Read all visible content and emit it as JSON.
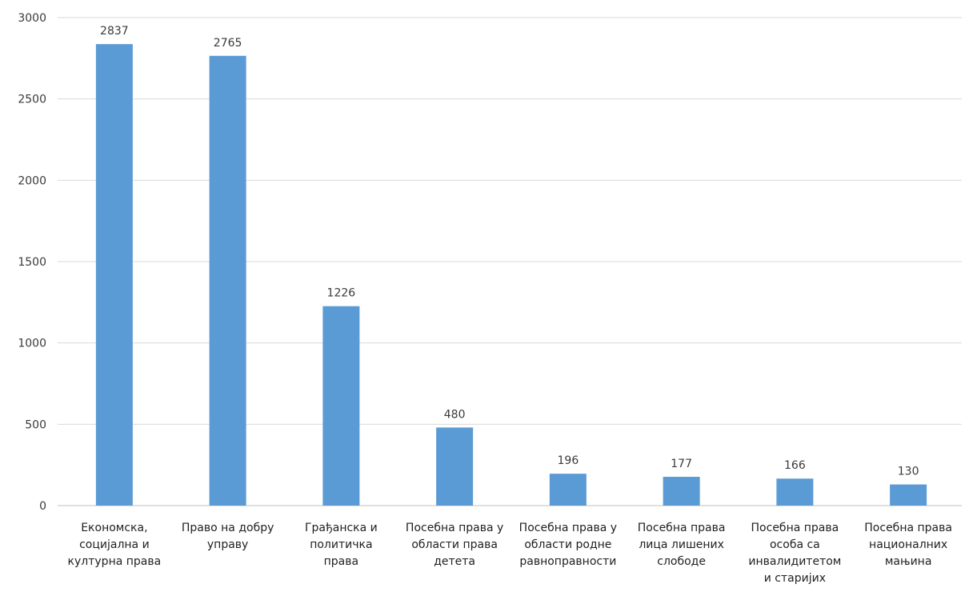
{
  "chart_data": {
    "type": "bar",
    "title": "",
    "xlabel": "",
    "ylabel": "",
    "ylim": [
      0,
      3000
    ],
    "yticks": [
      0,
      500,
      1000,
      1500,
      2000,
      2500,
      3000
    ],
    "grid": true,
    "legend": "none",
    "bar_color": "#5b9bd5",
    "categories": [
      [
        "Економска,",
        "социјална и",
        "културна права"
      ],
      [
        "Право на добру",
        "управу"
      ],
      [
        "Грађанска и",
        "политичка",
        "права"
      ],
      [
        "Посебна права у",
        "области права",
        "детета"
      ],
      [
        "Посебна права у",
        "области родне",
        "равноправности"
      ],
      [
        "Посебна права",
        "лица лишених",
        "слободе"
      ],
      [
        "Посебна права",
        "особа са",
        "инвалидитетом",
        "и старијих"
      ],
      [
        "Посебна права",
        "националних",
        "мањина"
      ]
    ],
    "values": [
      2837,
      2765,
      1226,
      480,
      196,
      177,
      166,
      130
    ]
  }
}
